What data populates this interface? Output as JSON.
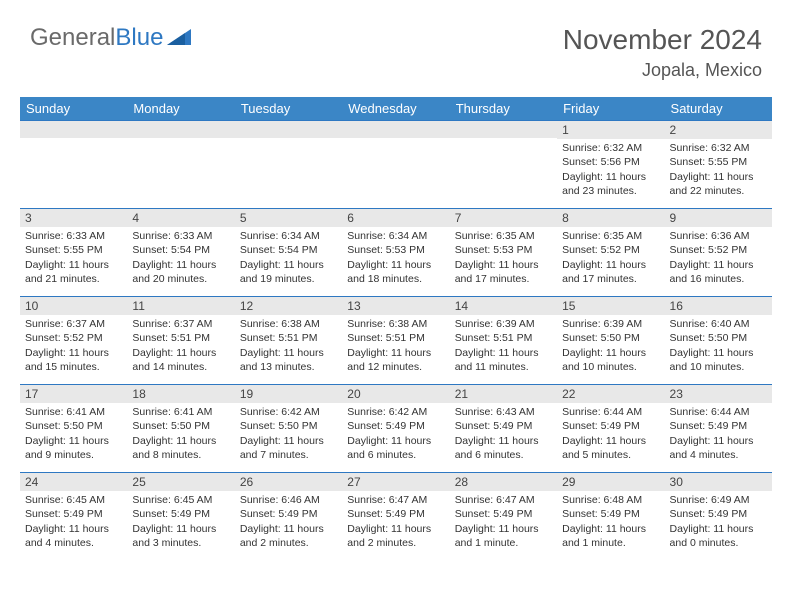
{
  "brand": {
    "gray": "General",
    "blue": "Blue"
  },
  "title": {
    "month": "November 2024",
    "location": "Jopala, Mexico"
  },
  "colors": {
    "header_bg": "#3b86c6",
    "header_text": "#ffffff",
    "daynum_bg": "#e8e8e8",
    "border_top": "#2e78c2",
    "body_text": "#333333",
    "title_text": "#555555"
  },
  "weekdays": [
    "Sunday",
    "Monday",
    "Tuesday",
    "Wednesday",
    "Thursday",
    "Friday",
    "Saturday"
  ],
  "leading_blanks": 5,
  "days": [
    {
      "n": 1,
      "sunrise": "6:32 AM",
      "sunset": "5:56 PM",
      "daylight": "11 hours and 23 minutes."
    },
    {
      "n": 2,
      "sunrise": "6:32 AM",
      "sunset": "5:55 PM",
      "daylight": "11 hours and 22 minutes."
    },
    {
      "n": 3,
      "sunrise": "6:33 AM",
      "sunset": "5:55 PM",
      "daylight": "11 hours and 21 minutes."
    },
    {
      "n": 4,
      "sunrise": "6:33 AM",
      "sunset": "5:54 PM",
      "daylight": "11 hours and 20 minutes."
    },
    {
      "n": 5,
      "sunrise": "6:34 AM",
      "sunset": "5:54 PM",
      "daylight": "11 hours and 19 minutes."
    },
    {
      "n": 6,
      "sunrise": "6:34 AM",
      "sunset": "5:53 PM",
      "daylight": "11 hours and 18 minutes."
    },
    {
      "n": 7,
      "sunrise": "6:35 AM",
      "sunset": "5:53 PM",
      "daylight": "11 hours and 17 minutes."
    },
    {
      "n": 8,
      "sunrise": "6:35 AM",
      "sunset": "5:52 PM",
      "daylight": "11 hours and 17 minutes."
    },
    {
      "n": 9,
      "sunrise": "6:36 AM",
      "sunset": "5:52 PM",
      "daylight": "11 hours and 16 minutes."
    },
    {
      "n": 10,
      "sunrise": "6:37 AM",
      "sunset": "5:52 PM",
      "daylight": "11 hours and 15 minutes."
    },
    {
      "n": 11,
      "sunrise": "6:37 AM",
      "sunset": "5:51 PM",
      "daylight": "11 hours and 14 minutes."
    },
    {
      "n": 12,
      "sunrise": "6:38 AM",
      "sunset": "5:51 PM",
      "daylight": "11 hours and 13 minutes."
    },
    {
      "n": 13,
      "sunrise": "6:38 AM",
      "sunset": "5:51 PM",
      "daylight": "11 hours and 12 minutes."
    },
    {
      "n": 14,
      "sunrise": "6:39 AM",
      "sunset": "5:51 PM",
      "daylight": "11 hours and 11 minutes."
    },
    {
      "n": 15,
      "sunrise": "6:39 AM",
      "sunset": "5:50 PM",
      "daylight": "11 hours and 10 minutes."
    },
    {
      "n": 16,
      "sunrise": "6:40 AM",
      "sunset": "5:50 PM",
      "daylight": "11 hours and 10 minutes."
    },
    {
      "n": 17,
      "sunrise": "6:41 AM",
      "sunset": "5:50 PM",
      "daylight": "11 hours and 9 minutes."
    },
    {
      "n": 18,
      "sunrise": "6:41 AM",
      "sunset": "5:50 PM",
      "daylight": "11 hours and 8 minutes."
    },
    {
      "n": 19,
      "sunrise": "6:42 AM",
      "sunset": "5:50 PM",
      "daylight": "11 hours and 7 minutes."
    },
    {
      "n": 20,
      "sunrise": "6:42 AM",
      "sunset": "5:49 PM",
      "daylight": "11 hours and 6 minutes."
    },
    {
      "n": 21,
      "sunrise": "6:43 AM",
      "sunset": "5:49 PM",
      "daylight": "11 hours and 6 minutes."
    },
    {
      "n": 22,
      "sunrise": "6:44 AM",
      "sunset": "5:49 PM",
      "daylight": "11 hours and 5 minutes."
    },
    {
      "n": 23,
      "sunrise": "6:44 AM",
      "sunset": "5:49 PM",
      "daylight": "11 hours and 4 minutes."
    },
    {
      "n": 24,
      "sunrise": "6:45 AM",
      "sunset": "5:49 PM",
      "daylight": "11 hours and 4 minutes."
    },
    {
      "n": 25,
      "sunrise": "6:45 AM",
      "sunset": "5:49 PM",
      "daylight": "11 hours and 3 minutes."
    },
    {
      "n": 26,
      "sunrise": "6:46 AM",
      "sunset": "5:49 PM",
      "daylight": "11 hours and 2 minutes."
    },
    {
      "n": 27,
      "sunrise": "6:47 AM",
      "sunset": "5:49 PM",
      "daylight": "11 hours and 2 minutes."
    },
    {
      "n": 28,
      "sunrise": "6:47 AM",
      "sunset": "5:49 PM",
      "daylight": "11 hours and 1 minute."
    },
    {
      "n": 29,
      "sunrise": "6:48 AM",
      "sunset": "5:49 PM",
      "daylight": "11 hours and 1 minute."
    },
    {
      "n": 30,
      "sunrise": "6:49 AM",
      "sunset": "5:49 PM",
      "daylight": "11 hours and 0 minutes."
    }
  ],
  "labels": {
    "sunrise": "Sunrise: ",
    "sunset": "Sunset: ",
    "daylight": "Daylight: "
  }
}
